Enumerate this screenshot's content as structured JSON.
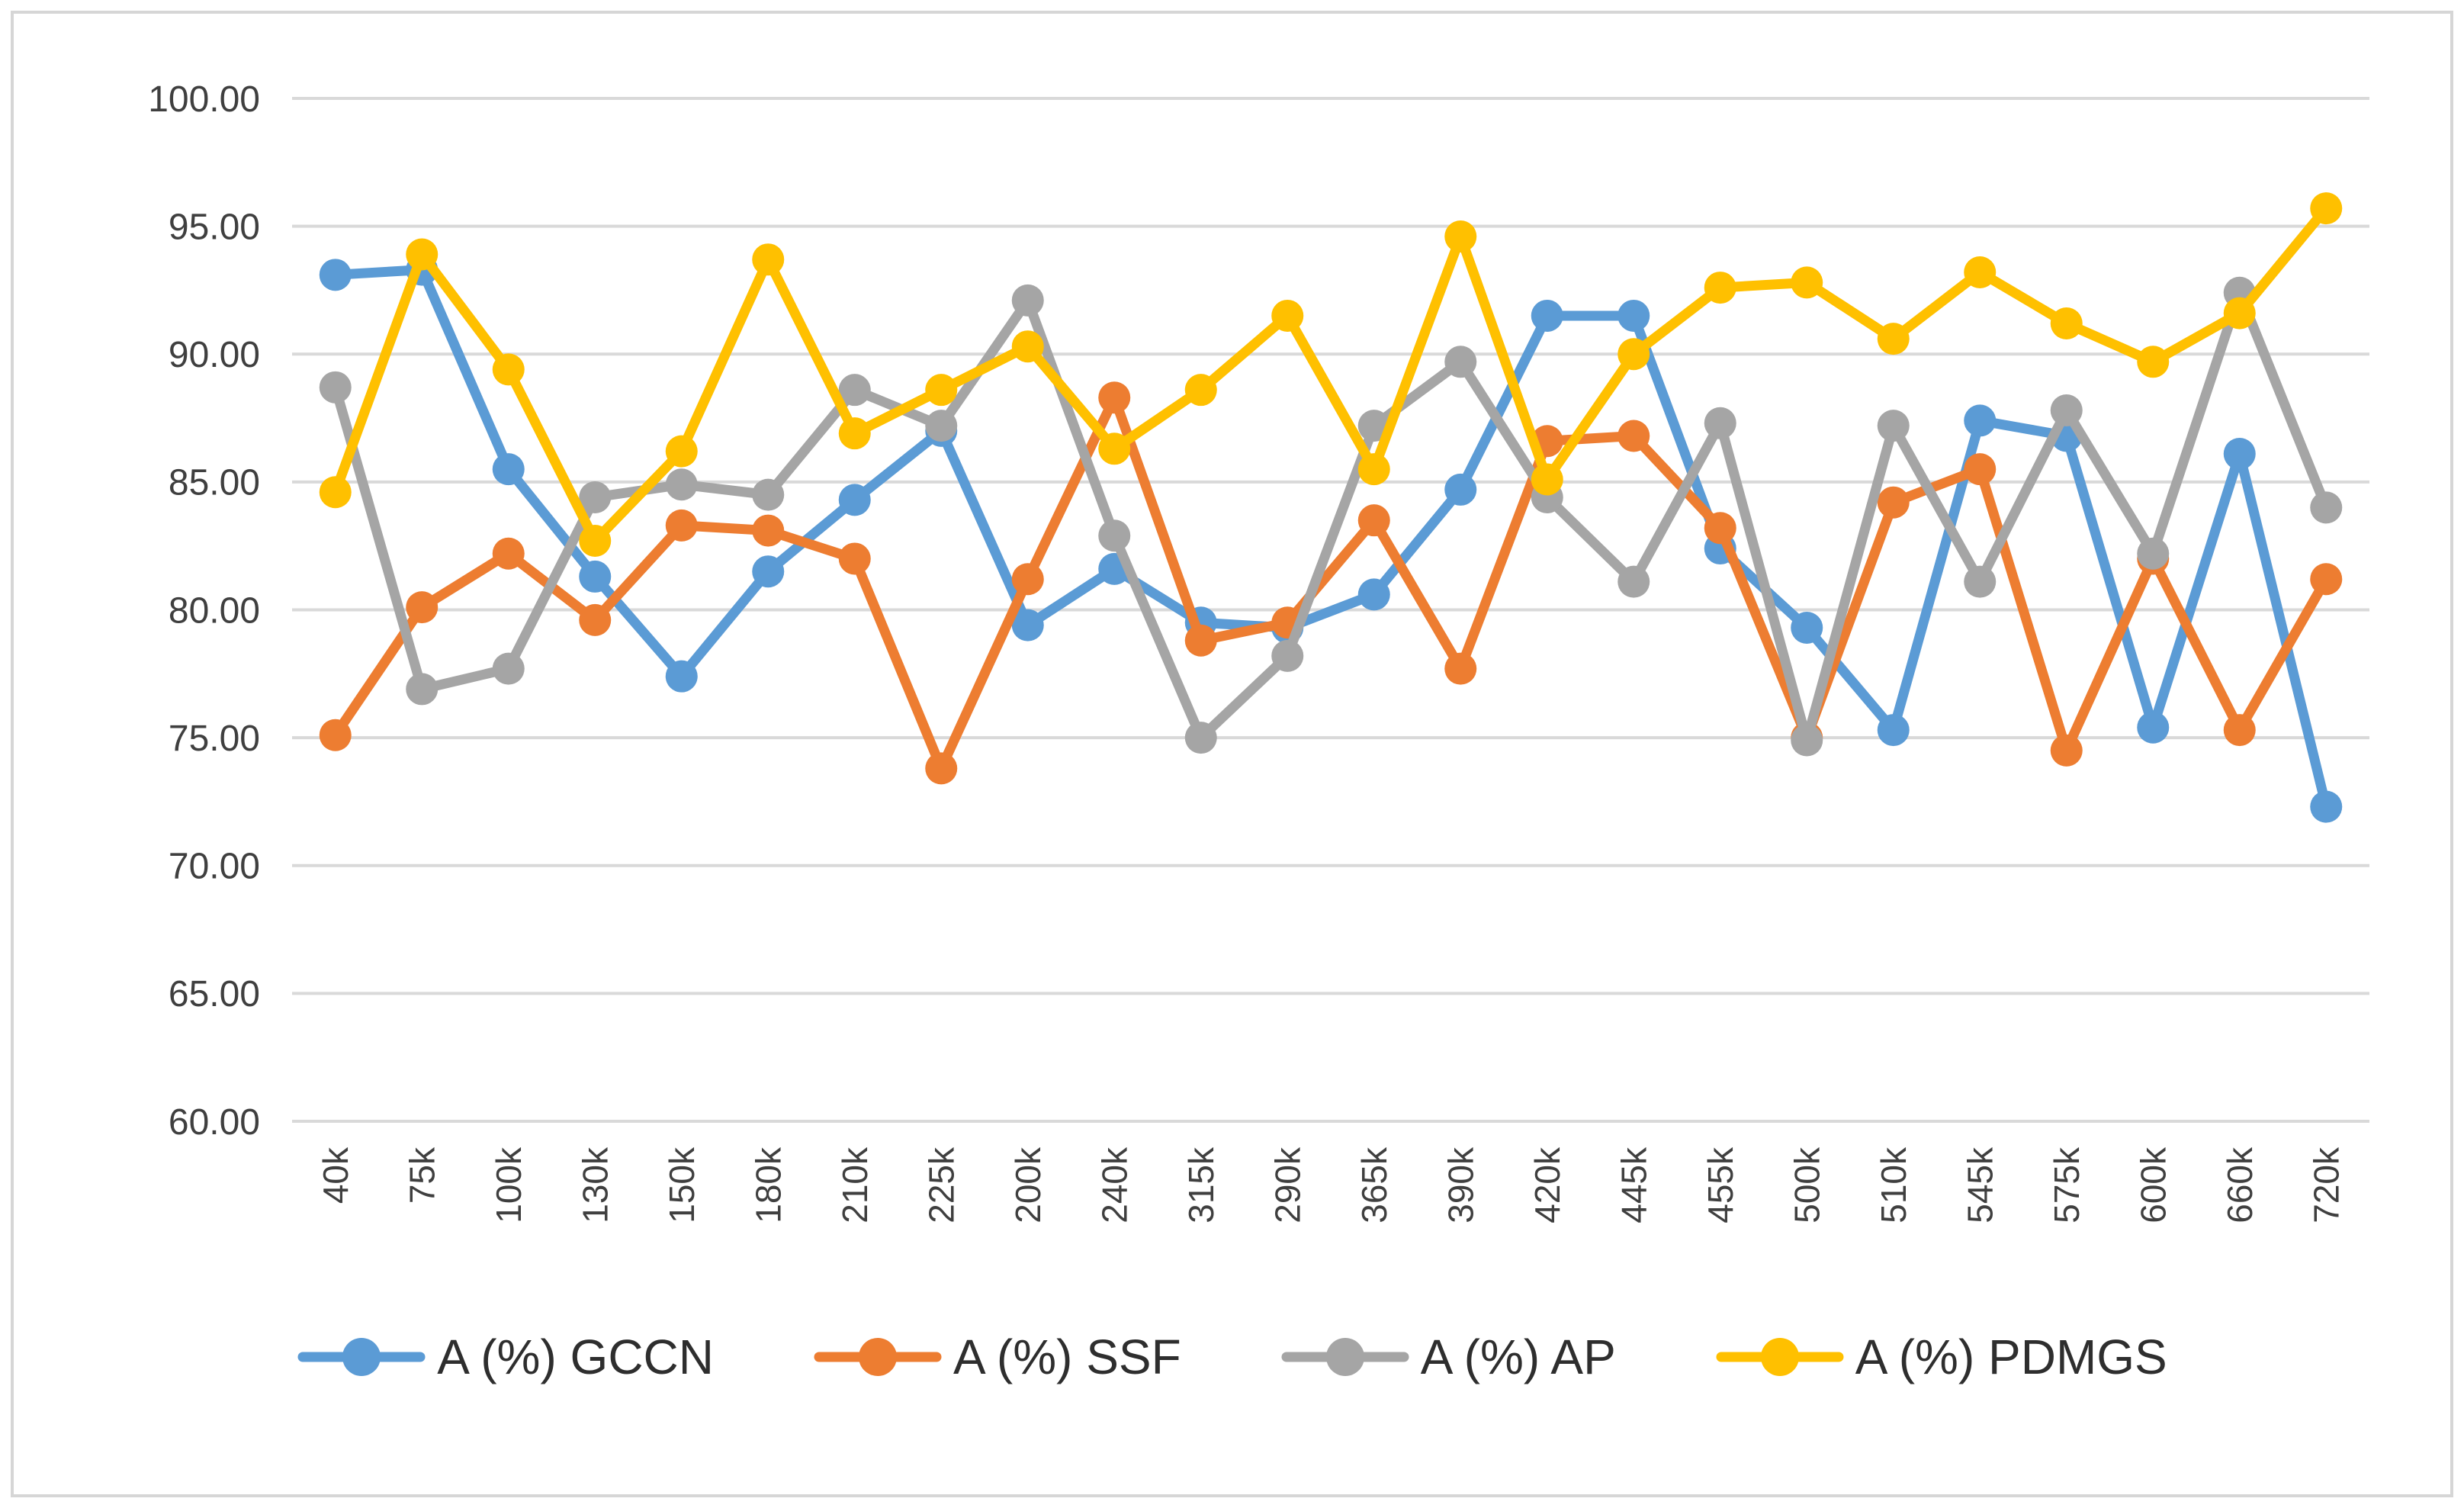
{
  "chart_data": {
    "type": "line",
    "title": "",
    "xlabel": "",
    "ylabel": "",
    "categories": [
      "40k",
      "75k",
      "100k",
      "130k",
      "150k",
      "180k",
      "210k",
      "225k",
      "200k",
      "240k",
      "315k",
      "290k",
      "365k",
      "390k",
      "420k",
      "445k",
      "455k",
      "500k",
      "510k",
      "545k",
      "575k",
      "600k",
      "660k",
      "720k"
    ],
    "series": [
      {
        "name": "A (%) GCCN",
        "color": "#5B9BD5",
        "values": [
          93.1,
          93.3,
          85.5,
          81.3,
          77.4,
          81.5,
          84.3,
          87.0,
          79.4,
          81.6,
          79.5,
          79.3,
          80.6,
          84.7,
          91.5,
          91.5,
          82.4,
          79.3,
          75.3,
          87.4,
          86.8,
          75.4,
          86.1,
          72.3
        ]
      },
      {
        "name": "A (%) SSF",
        "color": "#ED7D31",
        "values": [
          75.1,
          80.1,
          82.2,
          79.6,
          83.3,
          83.1,
          82.0,
          73.8,
          81.2,
          88.3,
          78.8,
          79.5,
          83.5,
          77.7,
          86.6,
          86.8,
          83.2,
          75.0,
          84.2,
          85.5,
          74.5,
          82.0,
          75.3,
          81.2
        ]
      },
      {
        "name": "A (%) AP",
        "color": "#A5A5A5",
        "values": [
          88.7,
          76.9,
          77.7,
          84.4,
          84.9,
          84.5,
          88.6,
          87.2,
          92.1,
          82.9,
          75.0,
          78.2,
          87.2,
          89.7,
          84.4,
          81.1,
          87.3,
          74.9,
          87.2,
          81.1,
          87.8,
          82.2,
          92.4,
          84.0
        ]
      },
      {
        "name": "A (%) PDMGS",
        "color": "#FFC000",
        "values": [
          84.6,
          93.9,
          89.4,
          82.7,
          86.2,
          93.7,
          86.9,
          88.6,
          90.3,
          86.3,
          88.6,
          91.5,
          85.5,
          94.6,
          85.1,
          90.0,
          92.6,
          92.8,
          90.6,
          93.2,
          91.2,
          89.7,
          91.6,
          95.7
        ]
      }
    ],
    "ylim": [
      60,
      100
    ],
    "ytick_step": 5,
    "ytick_labels": [
      "100.00",
      "95.00",
      "90.00",
      "85.00",
      "80.00",
      "75.00",
      "70.00",
      "65.00",
      "60.00"
    ],
    "grid": "horizontal",
    "gridline_color": "#D9D9D9",
    "axis_text_color": "#3F3F3F",
    "background": "#FFFFFF",
    "legend_position": "bottom"
  }
}
